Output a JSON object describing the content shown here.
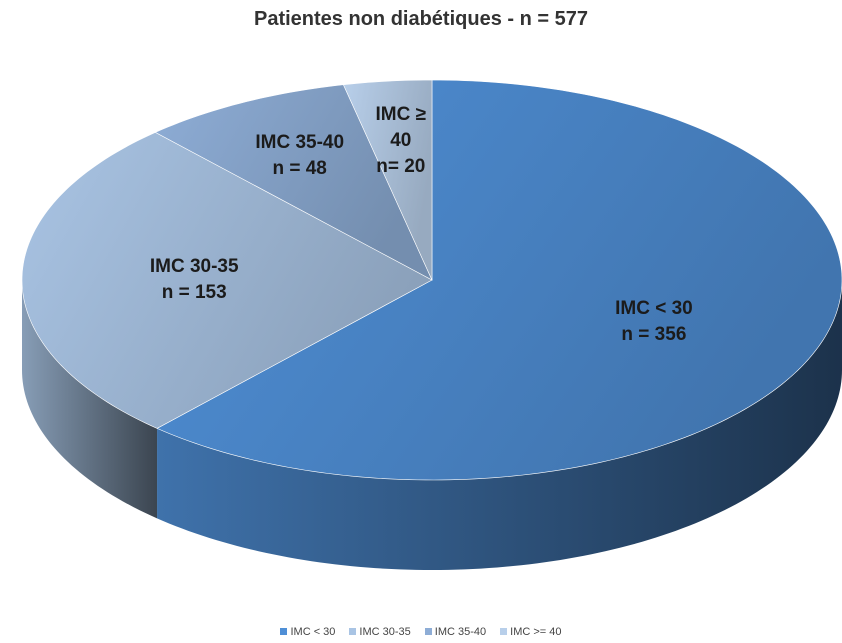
{
  "chart_data": {
    "type": "pie3d",
    "title": "Patientes non diabétiques - n = 577",
    "categories": [
      "IMC < 30",
      "IMC 30-35",
      "IMC 35-40",
      "IMC >= 40"
    ],
    "label_names": [
      "IMC < 30",
      "IMC 30-35",
      "IMC 35-40",
      "IMC ≥ 40"
    ],
    "values": [
      356,
      153,
      48,
      20
    ],
    "value_labels": [
      "n = 356",
      "n = 153",
      "n = 48",
      "n= 20"
    ],
    "colors": [
      "#4f8fd6",
      "#a9c4e4",
      "#8eadd6",
      "#b8cfea"
    ],
    "legend": "bottom"
  }
}
